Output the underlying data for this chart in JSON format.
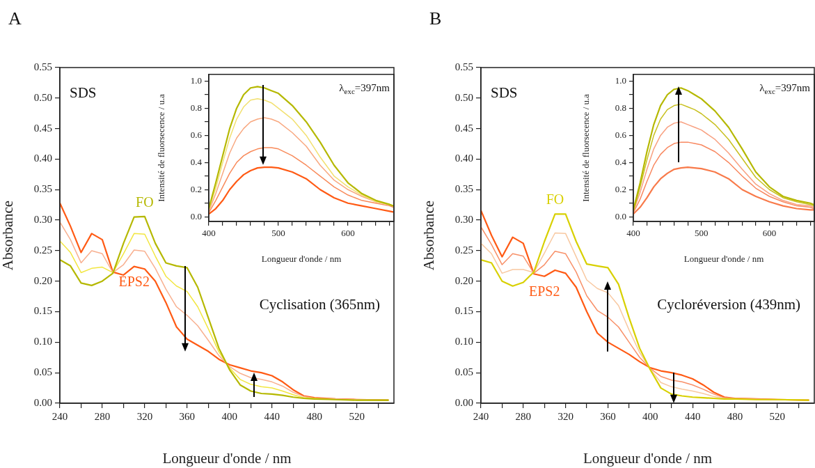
{
  "chart_data": [
    {
      "type": "line",
      "title": "A",
      "xlabel": "Longueur d'onde / nm",
      "ylabel": "Absorbance",
      "x": [
        240,
        250,
        260,
        270,
        280,
        290,
        300,
        310,
        320,
        330,
        340,
        350,
        360,
        370,
        380,
        390,
        400,
        410,
        420,
        430,
        440,
        450,
        460,
        470,
        480,
        500,
        520,
        550
      ],
      "xlim": [
        240,
        555
      ],
      "xticks": [
        240,
        {
          "value": 260,
          "label": null
        },
        280,
        {
          "value": 300,
          "label": null
        },
        320,
        {
          "value": 340,
          "label": null
        },
        360,
        {
          "value": 380,
          "label": null
        },
        400,
        {
          "value": 420,
          "label": null
        },
        440,
        {
          "value": 460,
          "label": null
        },
        480,
        {
          "value": 500,
          "label": null
        },
        520,
        {
          "value": 540,
          "label": null
        }
      ],
      "ylim": [
        0,
        0.55
      ],
      "yticks": [
        {
          "value": 0,
          "label": "0.00"
        },
        {
          "value": 0.05,
          "label": "0.05"
        },
        {
          "value": 0.1,
          "label": "0.10"
        },
        {
          "value": 0.15,
          "label": "0.15"
        },
        {
          "value": 0.2,
          "label": "0.20"
        },
        {
          "value": 0.25,
          "label": "0.25"
        },
        {
          "value": 0.3,
          "label": "0.30"
        },
        {
          "value": 0.35,
          "label": "0.35"
        },
        {
          "value": 0.4,
          "label": "0.40"
        },
        {
          "value": 0.45,
          "label": "0.45"
        },
        {
          "value": 0.5,
          "label": "0.50"
        },
        {
          "value": 0.55,
          "label": "0.55"
        }
      ],
      "series": [
        {
          "name": "FO",
          "color": "#b5b800",
          "values": [
            0.235,
            0.225,
            0.197,
            0.193,
            0.2,
            0.213,
            0.262,
            0.305,
            0.306,
            0.262,
            0.23,
            0.225,
            0.222,
            0.19,
            0.14,
            0.09,
            0.055,
            0.03,
            0.02,
            0.016,
            0.015,
            0.013,
            0.01,
            0.008,
            0.007,
            0.006,
            0.005,
            0.005
          ]
        },
        {
          "color": "#f2e640",
          "values": [
            0.266,
            0.247,
            0.214,
            0.221,
            0.223,
            0.214,
            0.245,
            0.278,
            0.277,
            0.241,
            0.208,
            0.192,
            0.183,
            0.158,
            0.122,
            0.084,
            0.058,
            0.039,
            0.031,
            0.027,
            0.025,
            0.02,
            0.014,
            0.009,
            0.008,
            0.006,
            0.005,
            0.005
          ]
        },
        {
          "color": "#f8b090",
          "values": [
            0.297,
            0.268,
            0.23,
            0.25,
            0.245,
            0.214,
            0.227,
            0.251,
            0.249,
            0.221,
            0.187,
            0.158,
            0.144,
            0.127,
            0.103,
            0.078,
            0.06,
            0.049,
            0.042,
            0.039,
            0.035,
            0.028,
            0.018,
            0.011,
            0.008,
            0.007,
            0.006,
            0.005
          ]
        },
        {
          "name": "EPS2",
          "color": "#ff5a14",
          "values": [
            0.328,
            0.29,
            0.247,
            0.278,
            0.268,
            0.215,
            0.21,
            0.224,
            0.22,
            0.2,
            0.165,
            0.125,
            0.105,
            0.095,
            0.085,
            0.072,
            0.063,
            0.058,
            0.053,
            0.05,
            0.045,
            0.035,
            0.022,
            0.012,
            0.009,
            0.007,
            0.006,
            0.005
          ]
        }
      ],
      "annotations": [
        "SDS",
        "Cyclisation (365nm)"
      ]
    },
    {
      "type": "line",
      "xlabel": "Longueur d'onde / nm",
      "ylabel": "Intensité de fluorsecence / u.a",
      "x": [
        400,
        410,
        420,
        430,
        440,
        450,
        460,
        470,
        480,
        490,
        500,
        520,
        540,
        560,
        580,
        600,
        620,
        640,
        660,
        665
      ],
      "xlim": [
        400,
        666
      ],
      "xticks": [
        400,
        {
          "value": 420,
          "label": null
        },
        {
          "value": 440,
          "label": null
        },
        {
          "value": 460,
          "label": null
        },
        {
          "value": 480,
          "label": null
        },
        500,
        {
          "value": 520,
          "label": null
        },
        {
          "value": 540,
          "label": null
        },
        {
          "value": 560,
          "label": null
        },
        {
          "value": 580,
          "label": null
        },
        600,
        {
          "value": 620,
          "label": null
        },
        {
          "value": 640,
          "label": null
        },
        {
          "value": 660,
          "label": null
        }
      ],
      "ylim": [
        -0.035,
        1.05
      ],
      "yticks": [
        {
          "value": 0,
          "label": "0.0"
        },
        {
          "value": 0.1,
          "label": null
        },
        {
          "value": 0.2,
          "label": "0.2"
        },
        {
          "value": 0.3,
          "label": null
        },
        {
          "value": 0.4,
          "label": "0.4"
        },
        {
          "value": 0.5,
          "label": null
        },
        {
          "value": 0.6,
          "label": "0.6"
        },
        {
          "value": 0.7,
          "label": null
        },
        {
          "value": 0.8,
          "label": "0.8"
        },
        {
          "value": 0.9,
          "label": null
        },
        {
          "value": 1.0,
          "label": "1.0"
        }
      ],
      "series": [
        {
          "color": "#b5b800",
          "values": [
            0.06,
            0.25,
            0.45,
            0.65,
            0.8,
            0.9,
            0.95,
            0.96,
            0.95,
            0.93,
            0.91,
            0.82,
            0.7,
            0.55,
            0.38,
            0.25,
            0.17,
            0.12,
            0.09,
            0.08
          ]
        },
        {
          "color": "#f2e070",
          "values": [
            0.05,
            0.21,
            0.4,
            0.58,
            0.72,
            0.81,
            0.86,
            0.87,
            0.86,
            0.84,
            0.8,
            0.72,
            0.6,
            0.44,
            0.3,
            0.22,
            0.16,
            0.11,
            0.09,
            0.08
          ]
        },
        {
          "color": "#f8a880",
          "values": [
            0.04,
            0.17,
            0.32,
            0.47,
            0.58,
            0.65,
            0.7,
            0.72,
            0.73,
            0.72,
            0.7,
            0.62,
            0.52,
            0.38,
            0.27,
            0.2,
            0.15,
            0.11,
            0.09,
            0.08
          ]
        },
        {
          "color": "#f88a5a",
          "values": [
            0.03,
            0.12,
            0.22,
            0.32,
            0.4,
            0.45,
            0.48,
            0.5,
            0.51,
            0.51,
            0.5,
            0.45,
            0.38,
            0.3,
            0.22,
            0.16,
            0.12,
            0.1,
            0.08,
            0.07
          ]
        },
        {
          "color": "#ff5a14",
          "values": [
            0.02,
            0.06,
            0.12,
            0.2,
            0.26,
            0.31,
            0.34,
            0.36,
            0.365,
            0.365,
            0.36,
            0.33,
            0.28,
            0.2,
            0.14,
            0.1,
            0.08,
            0.06,
            0.04,
            0.035
          ]
        }
      ],
      "annotations": [
        "λ$_{exc}$=397nm"
      ]
    },
    {
      "type": "line",
      "title": "B",
      "xlabel": "Longueur d'onde / nm",
      "ylabel": "Absorbance",
      "x": [
        240,
        250,
        260,
        270,
        280,
        290,
        300,
        310,
        320,
        330,
        340,
        350,
        360,
        370,
        380,
        390,
        400,
        410,
        420,
        430,
        440,
        450,
        460,
        470,
        480,
        500,
        520,
        550
      ],
      "xlim": [
        240,
        555
      ],
      "xticks": [
        240,
        {
          "value": 260,
          "label": null
        },
        280,
        {
          "value": 300,
          "label": null
        },
        320,
        {
          "value": 340,
          "label": null
        },
        360,
        {
          "value": 380,
          "label": null
        },
        400,
        {
          "value": 420,
          "label": null
        },
        440,
        {
          "value": 460,
          "label": null
        },
        480,
        {
          "value": 500,
          "label": null
        },
        520,
        {
          "value": 540,
          "label": null
        }
      ],
      "ylim": [
        0,
        0.55
      ],
      "yticks": [
        {
          "value": 0,
          "label": "0.00"
        },
        {
          "value": 0.05,
          "label": "0.05"
        },
        {
          "value": 0.1,
          "label": "0.10"
        },
        {
          "value": 0.15,
          "label": "0.15"
        },
        {
          "value": 0.2,
          "label": "0.20"
        },
        {
          "value": 0.25,
          "label": "0.25"
        },
        {
          "value": 0.3,
          "label": "0.30"
        },
        {
          "value": 0.35,
          "label": "0.35"
        },
        {
          "value": 0.4,
          "label": "0.40"
        },
        {
          "value": 0.45,
          "label": "0.45"
        },
        {
          "value": 0.5,
          "label": "0.50"
        },
        {
          "value": 0.55,
          "label": "0.55"
        }
      ],
      "series": [
        {
          "name": "FO",
          "color": "#d8d000",
          "values": [
            0.235,
            0.23,
            0.2,
            0.192,
            0.198,
            0.215,
            0.265,
            0.31,
            0.31,
            0.265,
            0.228,
            0.225,
            0.222,
            0.195,
            0.14,
            0.09,
            0.055,
            0.025,
            0.015,
            0.012,
            0.01,
            0.009,
            0.008,
            0.007,
            0.007,
            0.006,
            0.006,
            0.005
          ]
        },
        {
          "color": "#f8c8a0",
          "values": [
            0.262,
            0.245,
            0.213,
            0.219,
            0.219,
            0.214,
            0.246,
            0.279,
            0.278,
            0.24,
            0.202,
            0.188,
            0.181,
            0.16,
            0.12,
            0.083,
            0.056,
            0.034,
            0.027,
            0.023,
            0.02,
            0.016,
            0.011,
            0.008,
            0.007,
            0.006,
            0.006,
            0.005
          ]
        },
        {
          "color": "#f89068",
          "values": [
            0.289,
            0.26,
            0.227,
            0.245,
            0.241,
            0.213,
            0.227,
            0.249,
            0.245,
            0.215,
            0.176,
            0.152,
            0.141,
            0.125,
            0.1,
            0.075,
            0.057,
            0.044,
            0.038,
            0.035,
            0.03,
            0.023,
            0.015,
            0.009,
            0.008,
            0.007,
            0.006,
            0.005
          ]
        },
        {
          "name": "EPS2",
          "color": "#ff5a14",
          "values": [
            0.316,
            0.275,
            0.24,
            0.272,
            0.262,
            0.212,
            0.208,
            0.218,
            0.213,
            0.19,
            0.15,
            0.115,
            0.1,
            0.09,
            0.08,
            0.068,
            0.058,
            0.053,
            0.05,
            0.046,
            0.04,
            0.03,
            0.018,
            0.01,
            0.008,
            0.007,
            0.006,
            0.005
          ]
        }
      ],
      "annotations": [
        "SDS",
        "Cycloréversion (439nm)"
      ]
    },
    {
      "type": "line",
      "xlabel": "Longueur d'onde / nm",
      "ylabel": "Intensité de fluorsecence / u.a",
      "x": [
        400,
        410,
        420,
        430,
        440,
        450,
        460,
        470,
        480,
        490,
        500,
        520,
        540,
        560,
        580,
        600,
        620,
        640,
        660,
        665
      ],
      "xlim": [
        400,
        666
      ],
      "xticks": [
        400,
        {
          "value": 420,
          "label": null
        },
        {
          "value": 440,
          "label": null
        },
        {
          "value": 460,
          "label": null
        },
        {
          "value": 480,
          "label": null
        },
        500,
        {
          "value": 520,
          "label": null
        },
        {
          "value": 540,
          "label": null
        },
        {
          "value": 560,
          "label": null
        },
        {
          "value": 580,
          "label": null
        },
        600,
        {
          "value": 620,
          "label": null
        },
        {
          "value": 640,
          "label": null
        },
        {
          "value": 660,
          "label": null
        }
      ],
      "ylim": [
        -0.035,
        1.05
      ],
      "yticks": [
        {
          "value": 0,
          "label": "0.0"
        },
        {
          "value": 0.1,
          "label": null
        },
        {
          "value": 0.2,
          "label": "0.2"
        },
        {
          "value": 0.3,
          "label": null
        },
        {
          "value": 0.4,
          "label": "0.4"
        },
        {
          "value": 0.5,
          "label": null
        },
        {
          "value": 0.6,
          "label": "0.6"
        },
        {
          "value": 0.7,
          "label": null
        },
        {
          "value": 0.8,
          "label": "0.8"
        },
        {
          "value": 0.9,
          "label": null
        },
        {
          "value": 1.0,
          "label": "1.0"
        }
      ],
      "series": [
        {
          "color": "#b5b800",
          "values": [
            0.05,
            0.25,
            0.48,
            0.68,
            0.82,
            0.9,
            0.94,
            0.95,
            0.93,
            0.9,
            0.87,
            0.78,
            0.66,
            0.5,
            0.33,
            0.22,
            0.15,
            0.12,
            0.1,
            0.09
          ]
        },
        {
          "color": "#c8c020",
          "values": [
            0.04,
            0.22,
            0.42,
            0.6,
            0.72,
            0.79,
            0.82,
            0.83,
            0.81,
            0.79,
            0.76,
            0.68,
            0.57,
            0.43,
            0.29,
            0.2,
            0.14,
            0.11,
            0.09,
            0.08
          ]
        },
        {
          "color": "#f8a080",
          "values": [
            0.04,
            0.18,
            0.35,
            0.5,
            0.6,
            0.66,
            0.69,
            0.7,
            0.68,
            0.66,
            0.64,
            0.57,
            0.47,
            0.35,
            0.24,
            0.17,
            0.12,
            0.09,
            0.08,
            0.07
          ]
        },
        {
          "color": "#f88860",
          "values": [
            0.03,
            0.13,
            0.26,
            0.38,
            0.46,
            0.51,
            0.54,
            0.55,
            0.55,
            0.54,
            0.53,
            0.48,
            0.4,
            0.3,
            0.21,
            0.15,
            0.11,
            0.08,
            0.07,
            0.06
          ]
        },
        {
          "color": "#f87a4a",
          "values": [
            0.02,
            0.07,
            0.14,
            0.22,
            0.28,
            0.32,
            0.35,
            0.36,
            0.365,
            0.36,
            0.355,
            0.33,
            0.28,
            0.2,
            0.15,
            0.11,
            0.08,
            0.06,
            0.05,
            0.05
          ]
        }
      ],
      "annotations": [
        "λ$_{exc}$=397nm"
      ]
    }
  ]
}
